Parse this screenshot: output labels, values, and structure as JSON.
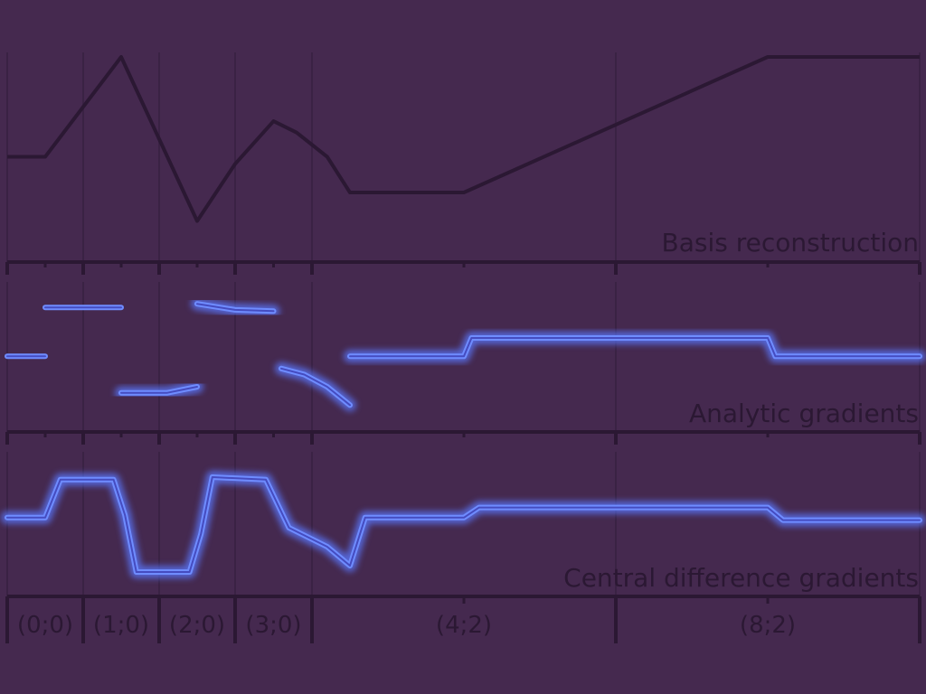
{
  "panels": {
    "basis": {
      "title": "Basis reconstruction"
    },
    "analytic": {
      "title": "Analytic gradients"
    },
    "central": {
      "title": "Central difference gradients"
    }
  },
  "segments": [
    {
      "label": "(0;0)",
      "from": 0,
      "to": 1
    },
    {
      "label": "(1;0)",
      "from": 1,
      "to": 2
    },
    {
      "label": "(2;0)",
      "from": 2,
      "to": 3
    },
    {
      "label": "(3;0)",
      "from": 3,
      "to": 4
    },
    {
      "label": "(4;2)",
      "from": 4,
      "to": 8
    },
    {
      "label": "(8;2)",
      "from": 8,
      "to": 12
    }
  ],
  "colors": {
    "background": "#45294f",
    "curve": "#2b1833",
    "gradient_glow": "#5a78ff",
    "gradient_core": "#6f8cff",
    "grid": "#3a2244"
  },
  "chart_data": {
    "type": "line",
    "x_domain": [
      0,
      12
    ],
    "basis_curve": [
      [
        0,
        0.3
      ],
      [
        0.5,
        0.3
      ],
      [
        1.5,
        1.0
      ],
      [
        2.5,
        -0.15
      ],
      [
        3.0,
        0.25
      ],
      [
        3.5,
        0.55
      ],
      [
        3.8,
        0.47
      ],
      [
        4.2,
        0.3
      ],
      [
        4.5,
        0.05
      ],
      [
        6.0,
        0.05
      ],
      [
        10.0,
        1.0
      ],
      [
        12.0,
        1.0
      ]
    ],
    "analytic_segments": [
      [
        [
          0,
          0.45
        ],
        [
          0.5,
          0.45
        ]
      ],
      [
        [
          0.5,
          0.85
        ],
        [
          1.5,
          0.85
        ]
      ],
      [
        [
          1.5,
          0.15
        ],
        [
          2.1,
          0.15
        ],
        [
          2.5,
          0.2
        ]
      ],
      [
        [
          2.5,
          0.88
        ],
        [
          3.0,
          0.83
        ],
        [
          3.5,
          0.82
        ]
      ],
      [
        [
          3.6,
          0.35
        ],
        [
          3.9,
          0.3
        ],
        [
          4.2,
          0.2
        ],
        [
          4.5,
          0.05
        ]
      ],
      [
        [
          4.5,
          0.45
        ],
        [
          6.0,
          0.45
        ],
        [
          6.1,
          0.6
        ],
        [
          10.0,
          0.6
        ],
        [
          10.1,
          0.45
        ],
        [
          12.0,
          0.45
        ]
      ]
    ],
    "central_curve": [
      [
        0,
        0.48
      ],
      [
        0.5,
        0.48
      ],
      [
        0.7,
        0.78
      ],
      [
        1.4,
        0.78
      ],
      [
        1.55,
        0.5
      ],
      [
        1.7,
        0.05
      ],
      [
        2.4,
        0.05
      ],
      [
        2.55,
        0.35
      ],
      [
        2.7,
        0.8
      ],
      [
        3.4,
        0.78
      ],
      [
        3.7,
        0.4
      ],
      [
        4.2,
        0.25
      ],
      [
        4.5,
        0.1
      ],
      [
        4.7,
        0.48
      ],
      [
        6.0,
        0.48
      ],
      [
        6.2,
        0.56
      ],
      [
        10.0,
        0.56
      ],
      [
        10.2,
        0.46
      ],
      [
        12.0,
        0.46
      ]
    ]
  }
}
